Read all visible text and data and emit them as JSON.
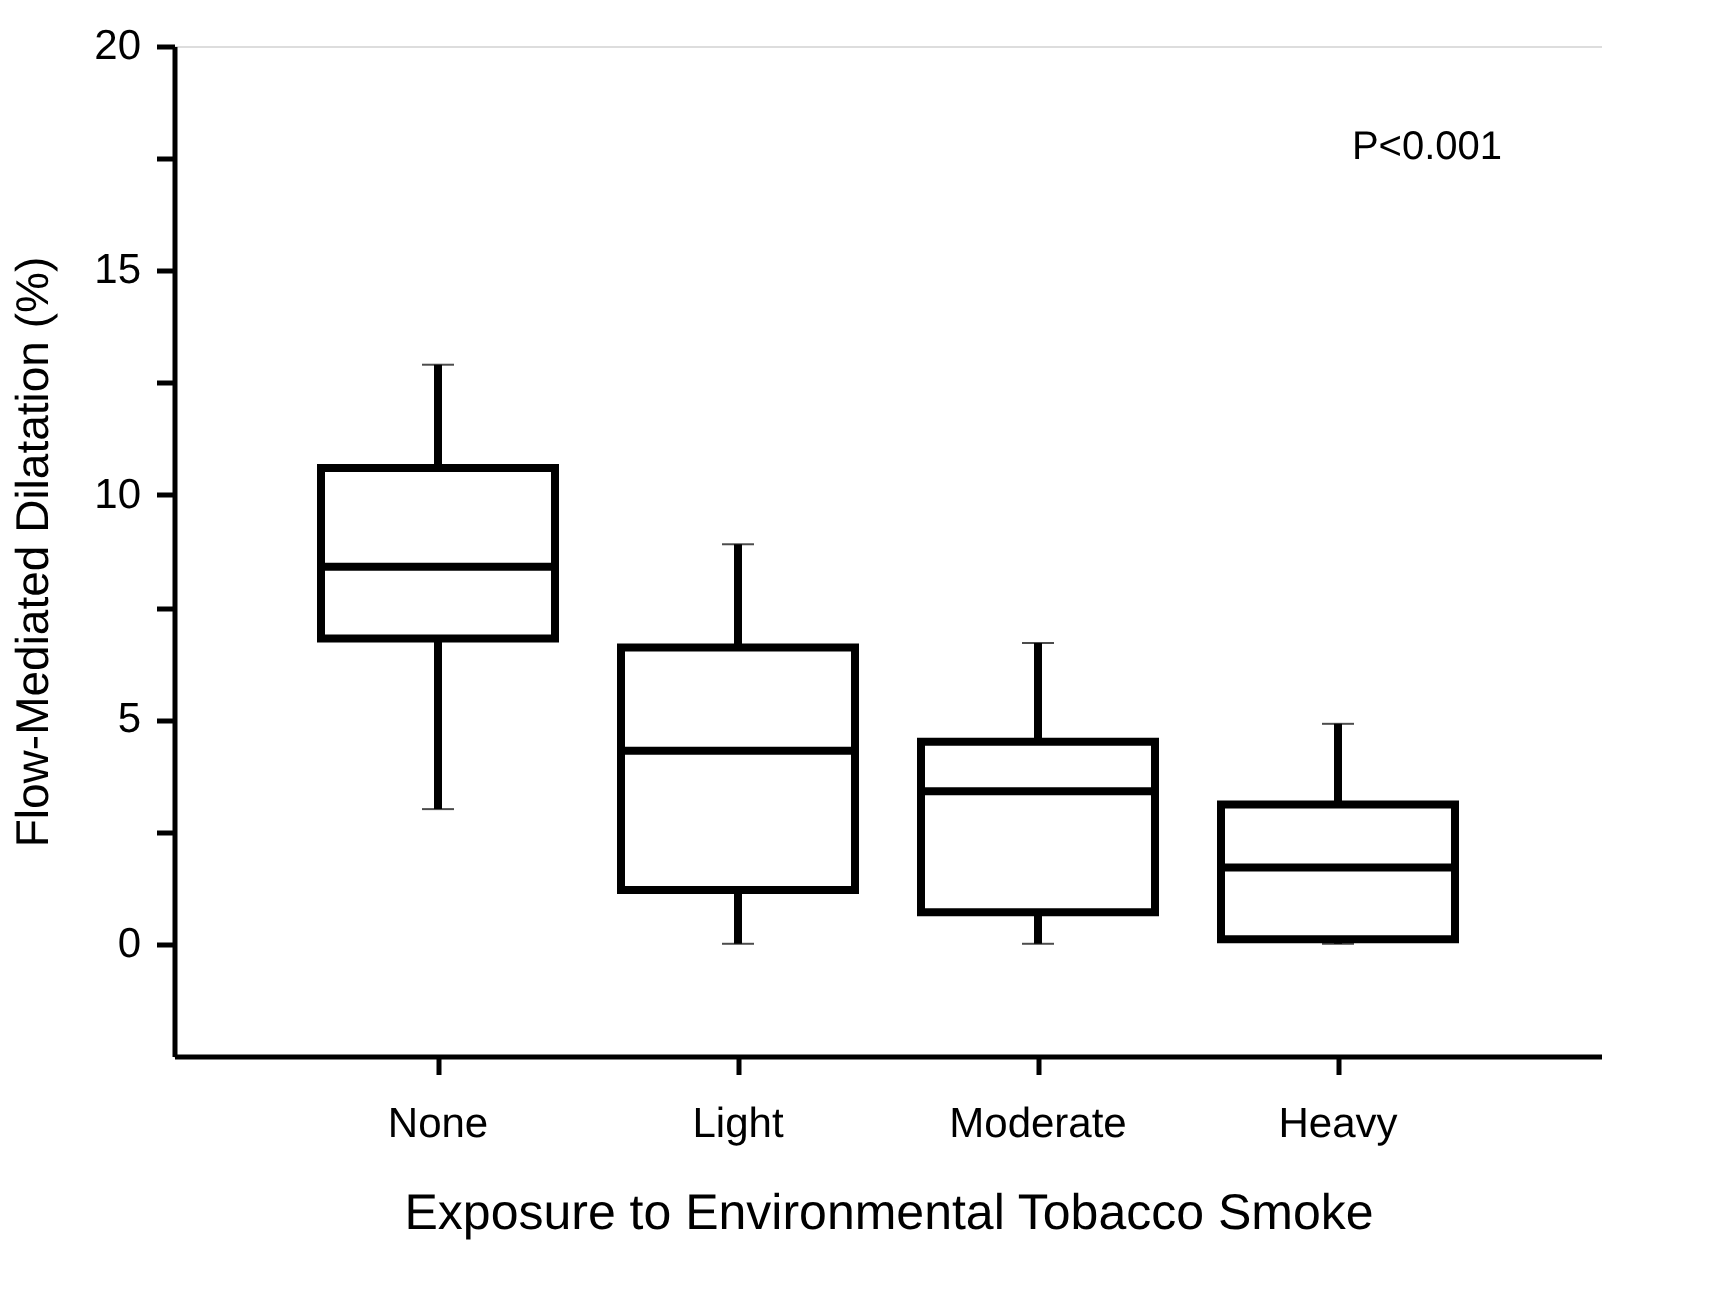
{
  "chart_data": {
    "type": "box",
    "xlabel": "Exposure to Environmental Tobacco Smoke",
    "ylabel": "Flow-Mediated Dilatation (%)",
    "categories": [
      "None",
      "Light",
      "Moderate",
      "Heavy"
    ],
    "boxes": [
      {
        "low": 3.0,
        "q1": 6.8,
        "median": 8.4,
        "q3": 10.6,
        "high": 12.9
      },
      {
        "low": 0.0,
        "q1": 1.2,
        "median": 4.3,
        "q3": 6.6,
        "high": 8.9
      },
      {
        "low": 0.0,
        "q1": 0.7,
        "median": 3.4,
        "q3": 4.5,
        "high": 6.7
      },
      {
        "low": 0.0,
        "q1": 0.1,
        "median": 1.7,
        "q3": 3.1,
        "high": 4.9
      }
    ],
    "ylim": [
      -2.5,
      20
    ],
    "yticks": [
      0,
      {
        "value": 2.5,
        "label": null
      },
      5,
      {
        "value": 7.5,
        "label": null
      },
      10,
      {
        "value": 12.5,
        "label": null
      },
      15,
      {
        "value": 17.5,
        "label": null
      },
      20
    ],
    "annotations": [
      "P<0.001"
    ]
  }
}
